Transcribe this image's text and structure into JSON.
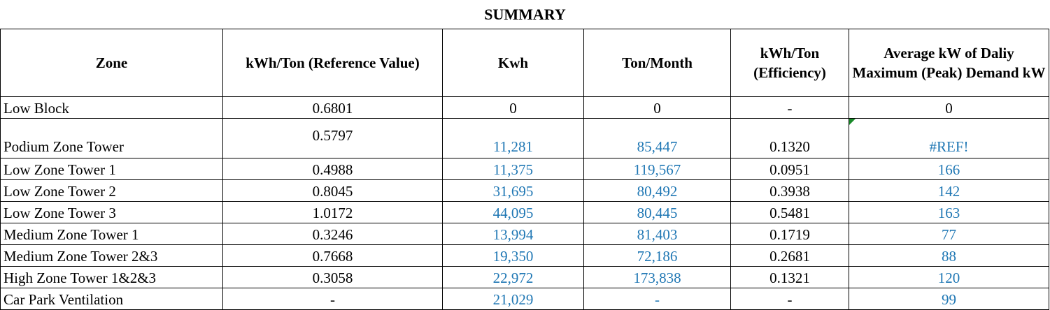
{
  "title": "SUMMARY",
  "headers": [
    "Zone",
    "kWh/Ton (Reference Value)",
    "Kwh",
    "Ton/Month",
    "kWh/Ton (Efficiency)",
    "Average kW of Daliy Maximum (Peak) Demand kW"
  ],
  "rows": [
    {
      "zone": "Low Block",
      "ref": "0.6801",
      "kwh": "0",
      "ton": "0",
      "eff": "-",
      "avg": "0"
    },
    {
      "zone": "Podium Zone Tower",
      "ref": "0.5797",
      "kwh": "11,281",
      "ton": "85,447",
      "eff": "0.1320",
      "avg": "#REF!"
    },
    {
      "zone": "Low Zone Tower 1",
      "ref": "0.4988",
      "kwh": "11,375",
      "ton": "119,567",
      "eff": "0.0951",
      "avg": "166"
    },
    {
      "zone": "Low Zone Tower 2",
      "ref": "0.8045",
      "kwh": "31,695",
      "ton": "80,492",
      "eff": "0.3938",
      "avg": "142"
    },
    {
      "zone": "Low Zone Tower 3",
      "ref": "1.0172",
      "kwh": "44,095",
      "ton": "80,445",
      "eff": "0.5481",
      "avg": "163"
    },
    {
      "zone": "Medium Zone Tower 1",
      "ref": "0.3246",
      "kwh": "13,994",
      "ton": "81,403",
      "eff": "0.1719",
      "avg": "77"
    },
    {
      "zone": "Medium Zone Tower 2&3",
      "ref": "0.7668",
      "kwh": "19,350",
      "ton": "72,186",
      "eff": "0.2681",
      "avg": "88"
    },
    {
      "zone": "High Zone Tower 1&2&3",
      "ref": "0.3058",
      "kwh": "22,972",
      "ton": "173,838",
      "eff": "0.1321",
      "avg": "120"
    },
    {
      "zone": "Car Park Ventilation",
      "ref": "-",
      "kwh": "21,029",
      "ton": "-",
      "eff": "-",
      "avg": "99"
    }
  ],
  "colors": {
    "value_blue": "#1f77b4",
    "comment_marker": "#1a8a2a"
  }
}
